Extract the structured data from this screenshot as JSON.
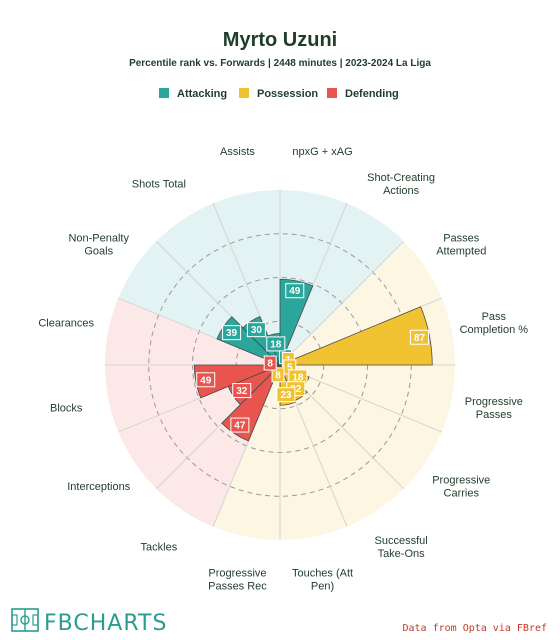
{
  "chart_data": {
    "type": "polar-bar",
    "title": "Myrto Uzuni",
    "subtitle": "Percentile rank vs. Forwards | 2448 minutes | 2023-2024 La Liga",
    "rlim": [
      0,
      100
    ],
    "grid": true,
    "legend_position": "top-center",
    "groups": [
      {
        "name": "Attacking",
        "color": "#2ba69a",
        "bg": "#e3f2f2"
      },
      {
        "name": "Possession",
        "color": "#f1c232",
        "bg": "#fdf6e3"
      },
      {
        "name": "Defending",
        "color": "#e8554e",
        "bg": "#fde8e8"
      }
    ],
    "categories": [
      {
        "label": "npxG + xAG",
        "value": 49,
        "group": "Attacking"
      },
      {
        "label": "Shot-Creating Actions",
        "value": 6,
        "group": "Attacking"
      },
      {
        "label": "Passes Attempted",
        "value": 1,
        "group": "Possession"
      },
      {
        "label": "Pass Completion %",
        "value": 87,
        "group": "Possession"
      },
      {
        "label": "Progressive Passes",
        "value": 5,
        "group": "Possession"
      },
      {
        "label": "Progressive Carries",
        "value": 18,
        "group": "Possession"
      },
      {
        "label": "Successful Take-Ons",
        "value": 22,
        "group": "Possession"
      },
      {
        "label": "Touches (Att Pen)",
        "value": 23,
        "group": "Possession"
      },
      {
        "label": "Progressive Passes Rec",
        "value": 8,
        "group": "Possession"
      },
      {
        "label": "Tackles",
        "value": 47,
        "group": "Defending"
      },
      {
        "label": "Interceptions",
        "value": 32,
        "group": "Defending"
      },
      {
        "label": "Blocks",
        "value": 49,
        "group": "Defending"
      },
      {
        "label": "Clearances",
        "value": 8,
        "group": "Defending"
      },
      {
        "label": "Non-Penalty Goals",
        "value": 39,
        "group": "Attacking"
      },
      {
        "label": "Shots Total",
        "value": 30,
        "group": "Attacking"
      },
      {
        "label": "Assists",
        "value": 18,
        "group": "Attacking"
      }
    ]
  },
  "branding": {
    "logo": "FBCHARTS",
    "logo_icon": "pitch-icon",
    "credit": "Data from Opta via FBref"
  }
}
